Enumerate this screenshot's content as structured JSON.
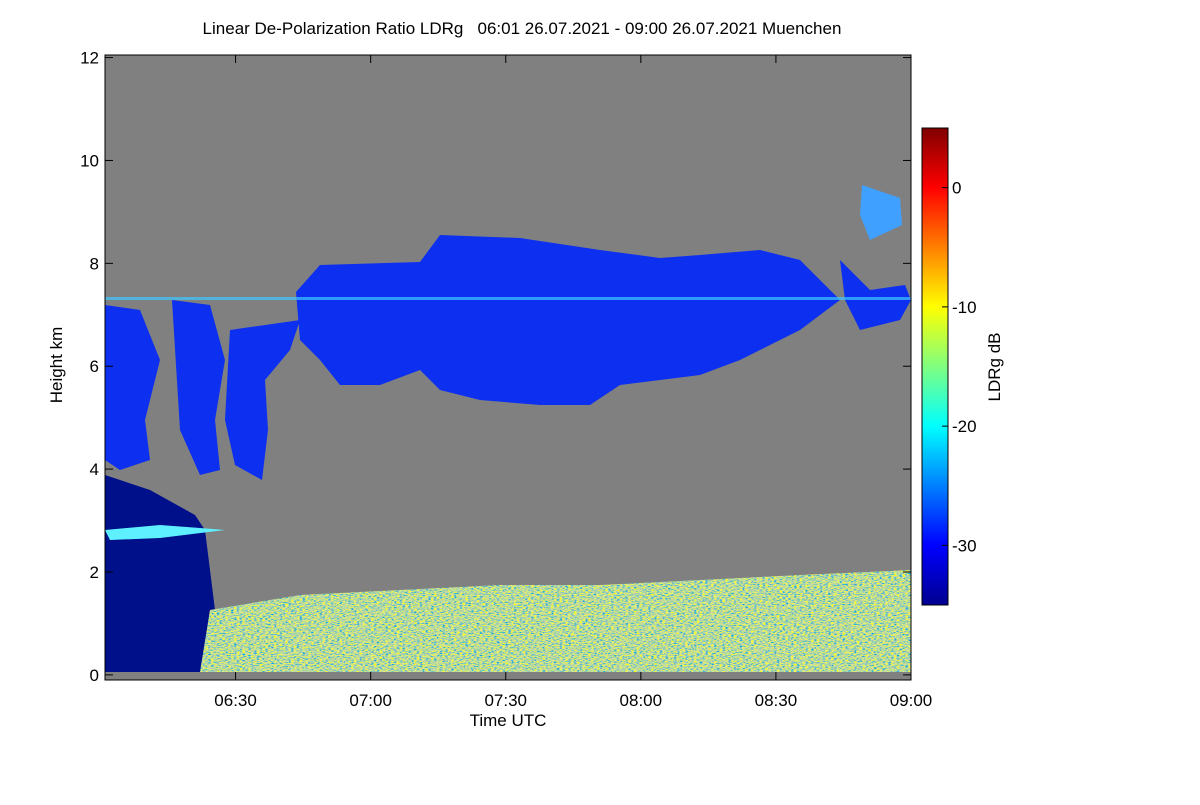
{
  "chart_data": {
    "type": "heatmap",
    "title": "Linear De-Polarization Ratio LDRg   06:01 26.07.2021 - 09:00 26.07.2021 Muenchen",
    "x_label": "Time UTC",
    "y_label": "Height km",
    "colorbar_label": "LDRg dB",
    "xlim": [
      361,
      540
    ],
    "xticks": [
      {
        "value": 390,
        "label": "06:30"
      },
      {
        "value": 420,
        "label": "07:00"
      },
      {
        "value": 450,
        "label": "07:30"
      },
      {
        "value": 480,
        "label": "08:00"
      },
      {
        "value": 510,
        "label": "08:30"
      },
      {
        "value": 540,
        "label": "09:00"
      }
    ],
    "ylim": [
      -0.1,
      12.05
    ],
    "yticks": [
      0,
      2,
      4,
      6,
      8,
      10,
      12
    ],
    "clim": [
      -35,
      5
    ],
    "cticks": [
      0,
      -10,
      -20,
      -30
    ],
    "colormap": "jet",
    "missing_color": "#808080"
  }
}
